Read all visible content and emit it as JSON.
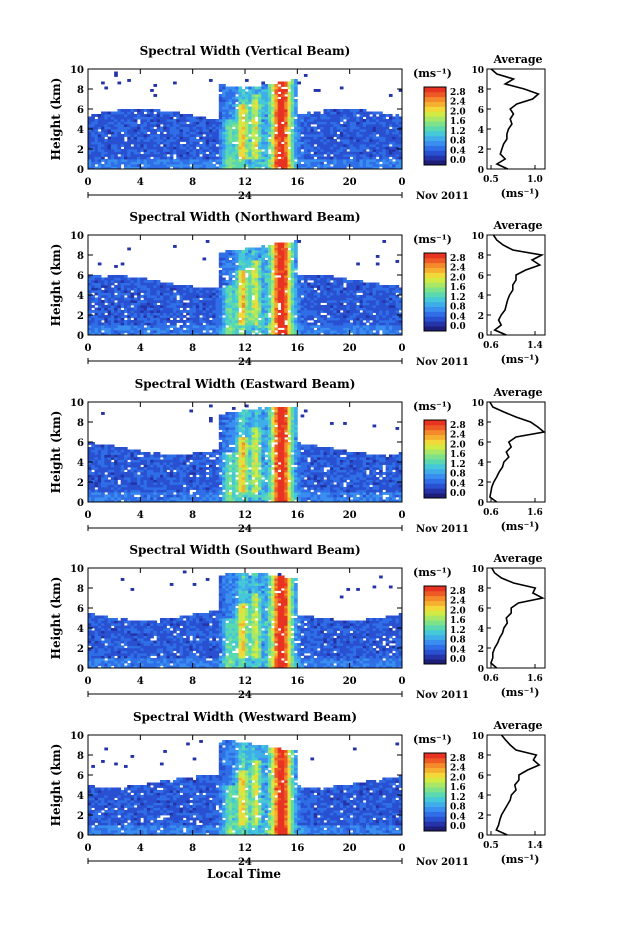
{
  "figure": {
    "xlabel": "Local Time",
    "date_label": "Nov 2011",
    "day_label": "24",
    "ylabel": "Height (km)",
    "colorbar_unit": "(ms⁻¹)",
    "colorbar_ticks": [
      "0.0",
      "0.4",
      "0.8",
      "1.2",
      "1.6",
      "2.0",
      "2.4",
      "2.8"
    ],
    "profile_title": "Average",
    "profile_xlabel": "(ms⁻¹)",
    "x_ticks": [
      "0",
      "4",
      "8",
      "12",
      "16",
      "20",
      "0"
    ],
    "y_ticks": [
      "0",
      "2",
      "4",
      "6",
      "8",
      "10"
    ],
    "colorscale": [
      "#1e1e78",
      "#2433a8",
      "#2850d0",
      "#2f6ee6",
      "#3a8ef0",
      "#3faee8",
      "#45c8d8",
      "#5ad8b0",
      "#7ee28a",
      "#a8e866",
      "#d2ea44",
      "#f2d838",
      "#f6b030",
      "#f58a2a",
      "#ee5a25",
      "#e83222"
    ]
  },
  "chart_data": [
    {
      "type": "heatmap",
      "title": "Spectral Width (Vertical Beam)",
      "xlabel": "",
      "ylabel": "Height (km)",
      "xlim": [
        0,
        24
      ],
      "ylim": [
        0,
        10
      ],
      "x_tick_labels": [
        "0",
        "4",
        "8",
        "12",
        "16",
        "20",
        "0"
      ],
      "cbar_range": [
        0.0,
        3.0
      ],
      "profile": {
        "title": "Average",
        "xlim": [
          0.5,
          1.2
        ],
        "x_tick_labels": [
          "0.5",
          "1.0"
        ],
        "y": [
          0,
          0.5,
          1,
          1.5,
          2,
          2.5,
          3,
          3.5,
          4,
          4.5,
          5,
          5.5,
          6,
          6.5,
          7,
          7.5,
          8,
          8.5,
          9,
          9.5,
          10
        ],
        "x": [
          0.75,
          0.62,
          0.72,
          0.66,
          0.68,
          0.7,
          0.74,
          0.74,
          0.76,
          0.8,
          0.78,
          0.82,
          0.78,
          0.86,
          1.05,
          1.12,
          0.95,
          0.72,
          0.82,
          0.62,
          0.55
        ]
      }
    },
    {
      "type": "heatmap",
      "title": "Spectral Width (Northward Beam)",
      "xlabel": "",
      "ylabel": "Height (km)",
      "xlim": [
        0,
        24
      ],
      "ylim": [
        0,
        10
      ],
      "x_tick_labels": [
        "0",
        "4",
        "8",
        "12",
        "16",
        "20",
        "0"
      ],
      "cbar_range": [
        0.0,
        3.0
      ],
      "profile": {
        "title": "Average",
        "xlim": [
          0.6,
          1.5
        ],
        "x_tick_labels": [
          "0.6",
          "1.4"
        ],
        "y": [
          0,
          0.5,
          1,
          1.5,
          2,
          2.5,
          3,
          3.5,
          4,
          4.5,
          5,
          5.5,
          6,
          6.5,
          7,
          7.5,
          8,
          8.5,
          9,
          9.5,
          10
        ],
        "x": [
          0.9,
          0.72,
          0.82,
          0.78,
          0.82,
          0.88,
          0.9,
          0.92,
          0.95,
          1.0,
          1.0,
          1.05,
          1.05,
          1.2,
          1.42,
          1.3,
          1.45,
          1.0,
          0.85,
          0.75,
          0.7
        ]
      }
    },
    {
      "type": "heatmap",
      "title": "Spectral Width (Eastward Beam)",
      "xlabel": "",
      "ylabel": "Height (km)",
      "xlim": [
        0,
        24
      ],
      "ylim": [
        0,
        10
      ],
      "x_tick_labels": [
        "0",
        "4",
        "8",
        "12",
        "16",
        "20",
        "0"
      ],
      "cbar_range": [
        0.0,
        3.0
      ],
      "profile": {
        "title": "Average",
        "xlim": [
          0.6,
          1.8
        ],
        "x_tick_labels": [
          "0.6",
          "1.6"
        ],
        "y": [
          0,
          0.5,
          1,
          1.5,
          2,
          2.5,
          3,
          3.5,
          4,
          4.5,
          5,
          5.5,
          6,
          6.5,
          7,
          7.5,
          8,
          8.5,
          9,
          9.5,
          10
        ],
        "x": [
          0.8,
          0.66,
          0.68,
          0.7,
          0.74,
          0.8,
          0.85,
          0.92,
          0.95,
          1.05,
          1.0,
          1.1,
          1.05,
          1.2,
          1.78,
          1.65,
          1.5,
          1.2,
          0.95,
          0.72,
          0.66
        ]
      }
    },
    {
      "type": "heatmap",
      "title": "Spectral Width (Southward Beam)",
      "xlabel": "",
      "ylabel": "Height (km)",
      "xlim": [
        0,
        24
      ],
      "ylim": [
        0,
        10
      ],
      "x_tick_labels": [
        "0",
        "4",
        "8",
        "12",
        "16",
        "20",
        "0"
      ],
      "cbar_range": [
        0.0,
        3.0
      ],
      "profile": {
        "title": "Average",
        "xlim": [
          0.6,
          1.8
        ],
        "x_tick_labels": [
          "0.6",
          "1.6"
        ],
        "y": [
          0,
          0.5,
          1,
          1.5,
          2,
          2.5,
          3,
          3.5,
          4,
          4.5,
          5,
          5.5,
          6,
          6.5,
          7,
          7.5,
          8,
          8.5,
          9,
          9.5,
          10
        ],
        "x": [
          0.8,
          0.68,
          0.72,
          0.72,
          0.76,
          0.82,
          0.86,
          0.92,
          0.95,
          1.02,
          1.0,
          1.1,
          1.1,
          1.25,
          1.75,
          1.55,
          1.6,
          1.15,
          0.9,
          0.76,
          0.7
        ]
      }
    },
    {
      "type": "heatmap",
      "title": "Spectral Width (Westward Beam)",
      "xlabel": "Local Time",
      "ylabel": "Height (km)",
      "xlim": [
        0,
        24
      ],
      "ylim": [
        0,
        10
      ],
      "x_tick_labels": [
        "0",
        "4",
        "8",
        "12",
        "16",
        "20",
        "0"
      ],
      "cbar_range": [
        0.0,
        3.0
      ],
      "profile": {
        "title": "Average",
        "xlim": [
          0.5,
          1.5
        ],
        "x_tick_labels": [
          "0.5",
          "1.4"
        ],
        "y": [
          0,
          0.5,
          1,
          1.5,
          2,
          2.5,
          3,
          3.5,
          4,
          4.5,
          5,
          5.5,
          6,
          6.5,
          7,
          7.5,
          8,
          8.5,
          9,
          9.5,
          10
        ],
        "x": [
          0.85,
          0.66,
          0.7,
          0.72,
          0.75,
          0.8,
          0.85,
          0.9,
          0.92,
          1.0,
          0.98,
          1.05,
          1.05,
          1.2,
          1.4,
          1.3,
          1.35,
          1.0,
          0.9,
          0.82,
          0.75
        ]
      }
    }
  ]
}
